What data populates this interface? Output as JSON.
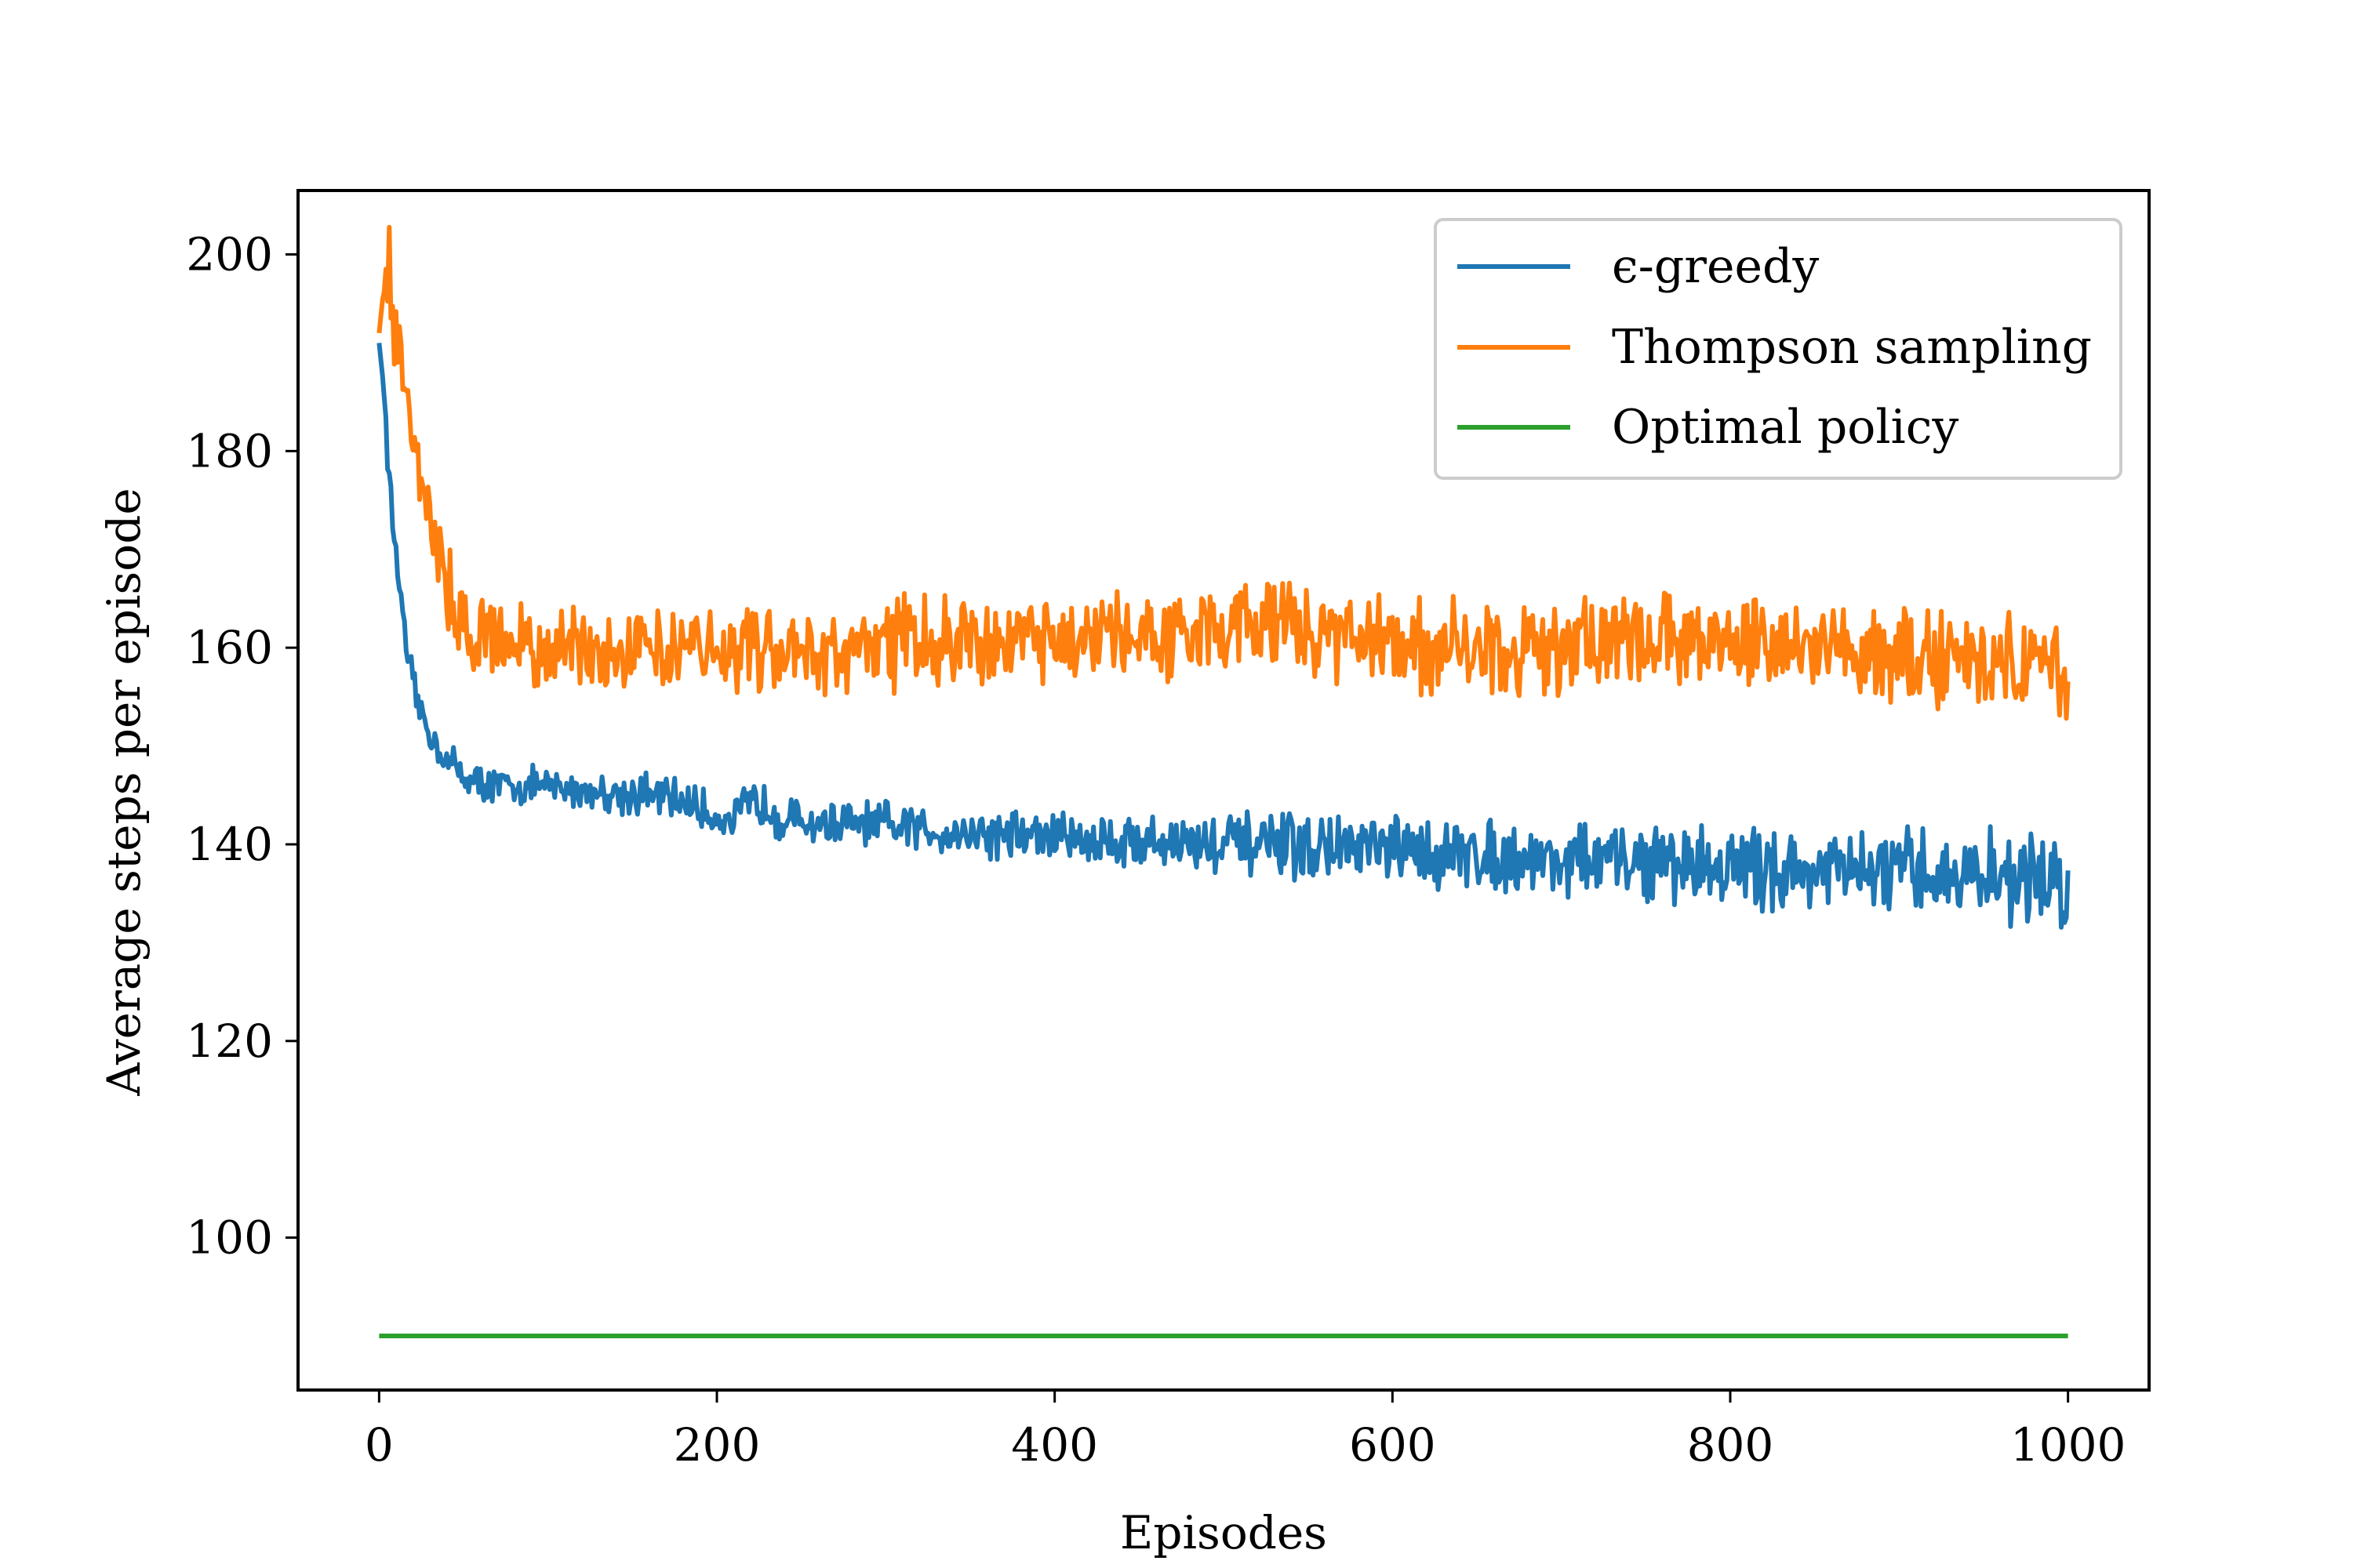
{
  "chart_data": {
    "type": "line",
    "title": "",
    "xlabel": "Episodes",
    "ylabel": "Average steps per episode",
    "xlim": [
      -48,
      1048
    ],
    "ylim": [
      84.5,
      206.5
    ],
    "xticks": [
      0,
      200,
      400,
      600,
      800,
      1000
    ],
    "yticks": [
      100,
      120,
      140,
      160,
      180,
      200
    ],
    "grid": false,
    "legend_position": "top-right",
    "series": [
      {
        "name": "ϵ-greedy",
        "color": "#1f77b4",
        "x": [
          0,
          3,
          6,
          9,
          12,
          15,
          18,
          22,
          26,
          30,
          35,
          40,
          45,
          50,
          55,
          60,
          70,
          80,
          90,
          100,
          120,
          140,
          160,
          180,
          190,
          200,
          210,
          220,
          230,
          240,
          250,
          275,
          300,
          325,
          350,
          375,
          400,
          425,
          450,
          475,
          500,
          525,
          550,
          575,
          600,
          625,
          650,
          675,
          700,
          725,
          750,
          775,
          800,
          825,
          850,
          875,
          900,
          925,
          950,
          975,
          1000
        ],
        "y": [
          191,
          186,
          177,
          171,
          167,
          161,
          158,
          155,
          153,
          151,
          150,
          148.5,
          148,
          147,
          146.5,
          146.2,
          146,
          145.8,
          146,
          145.8,
          145.5,
          145.2,
          145,
          144.5,
          143.5,
          142.8,
          142.5,
          144.2,
          144,
          142.5,
          142.2,
          142,
          141.8,
          141.5,
          141.2,
          141,
          140.8,
          140.5,
          140.3,
          140.2,
          140,
          139.8,
          139.6,
          139.5,
          139.3,
          139,
          139,
          138.7,
          138.5,
          138.3,
          138.2,
          138,
          137.8,
          137.5,
          137.3,
          137.2,
          137,
          137,
          136.8,
          136.5,
          136.3
        ]
      },
      {
        "name": "Thompson sampling",
        "color": "#ff7f0e",
        "x": [
          0,
          3,
          6,
          9,
          12,
          15,
          18,
          22,
          26,
          30,
          35,
          40,
          45,
          50,
          55,
          60,
          70,
          80,
          90,
          100,
          120,
          140,
          160,
          180,
          200,
          225,
          250,
          275,
          300,
          325,
          350,
          375,
          400,
          425,
          450,
          475,
          500,
          525,
          550,
          575,
          600,
          625,
          650,
          675,
          700,
          725,
          750,
          775,
          800,
          825,
          850,
          875,
          900,
          925,
          950,
          975,
          1000
        ],
        "y": [
          192,
          197,
          199,
          193,
          191,
          188,
          184,
          181,
          177,
          173,
          169,
          166,
          164,
          163,
          162,
          161.5,
          161,
          160.5,
          160,
          159.5,
          160,
          160.5,
          161,
          160.5,
          160,
          159.8,
          159.5,
          159.8,
          160.5,
          160.8,
          161,
          160,
          160.5,
          161,
          161.5,
          161.5,
          162,
          162.5,
          161.5,
          161,
          160.5,
          160,
          160,
          159.8,
          160.5,
          160.8,
          161,
          160.5,
          160.2,
          160,
          159.8,
          159.5,
          159.3,
          159,
          158.7,
          158.3,
          158
        ]
      },
      {
        "name": "Optimal policy",
        "color": "#2ca02c",
        "x": [
          0,
          1000
        ],
        "y": [
          90,
          90
        ]
      }
    ]
  }
}
